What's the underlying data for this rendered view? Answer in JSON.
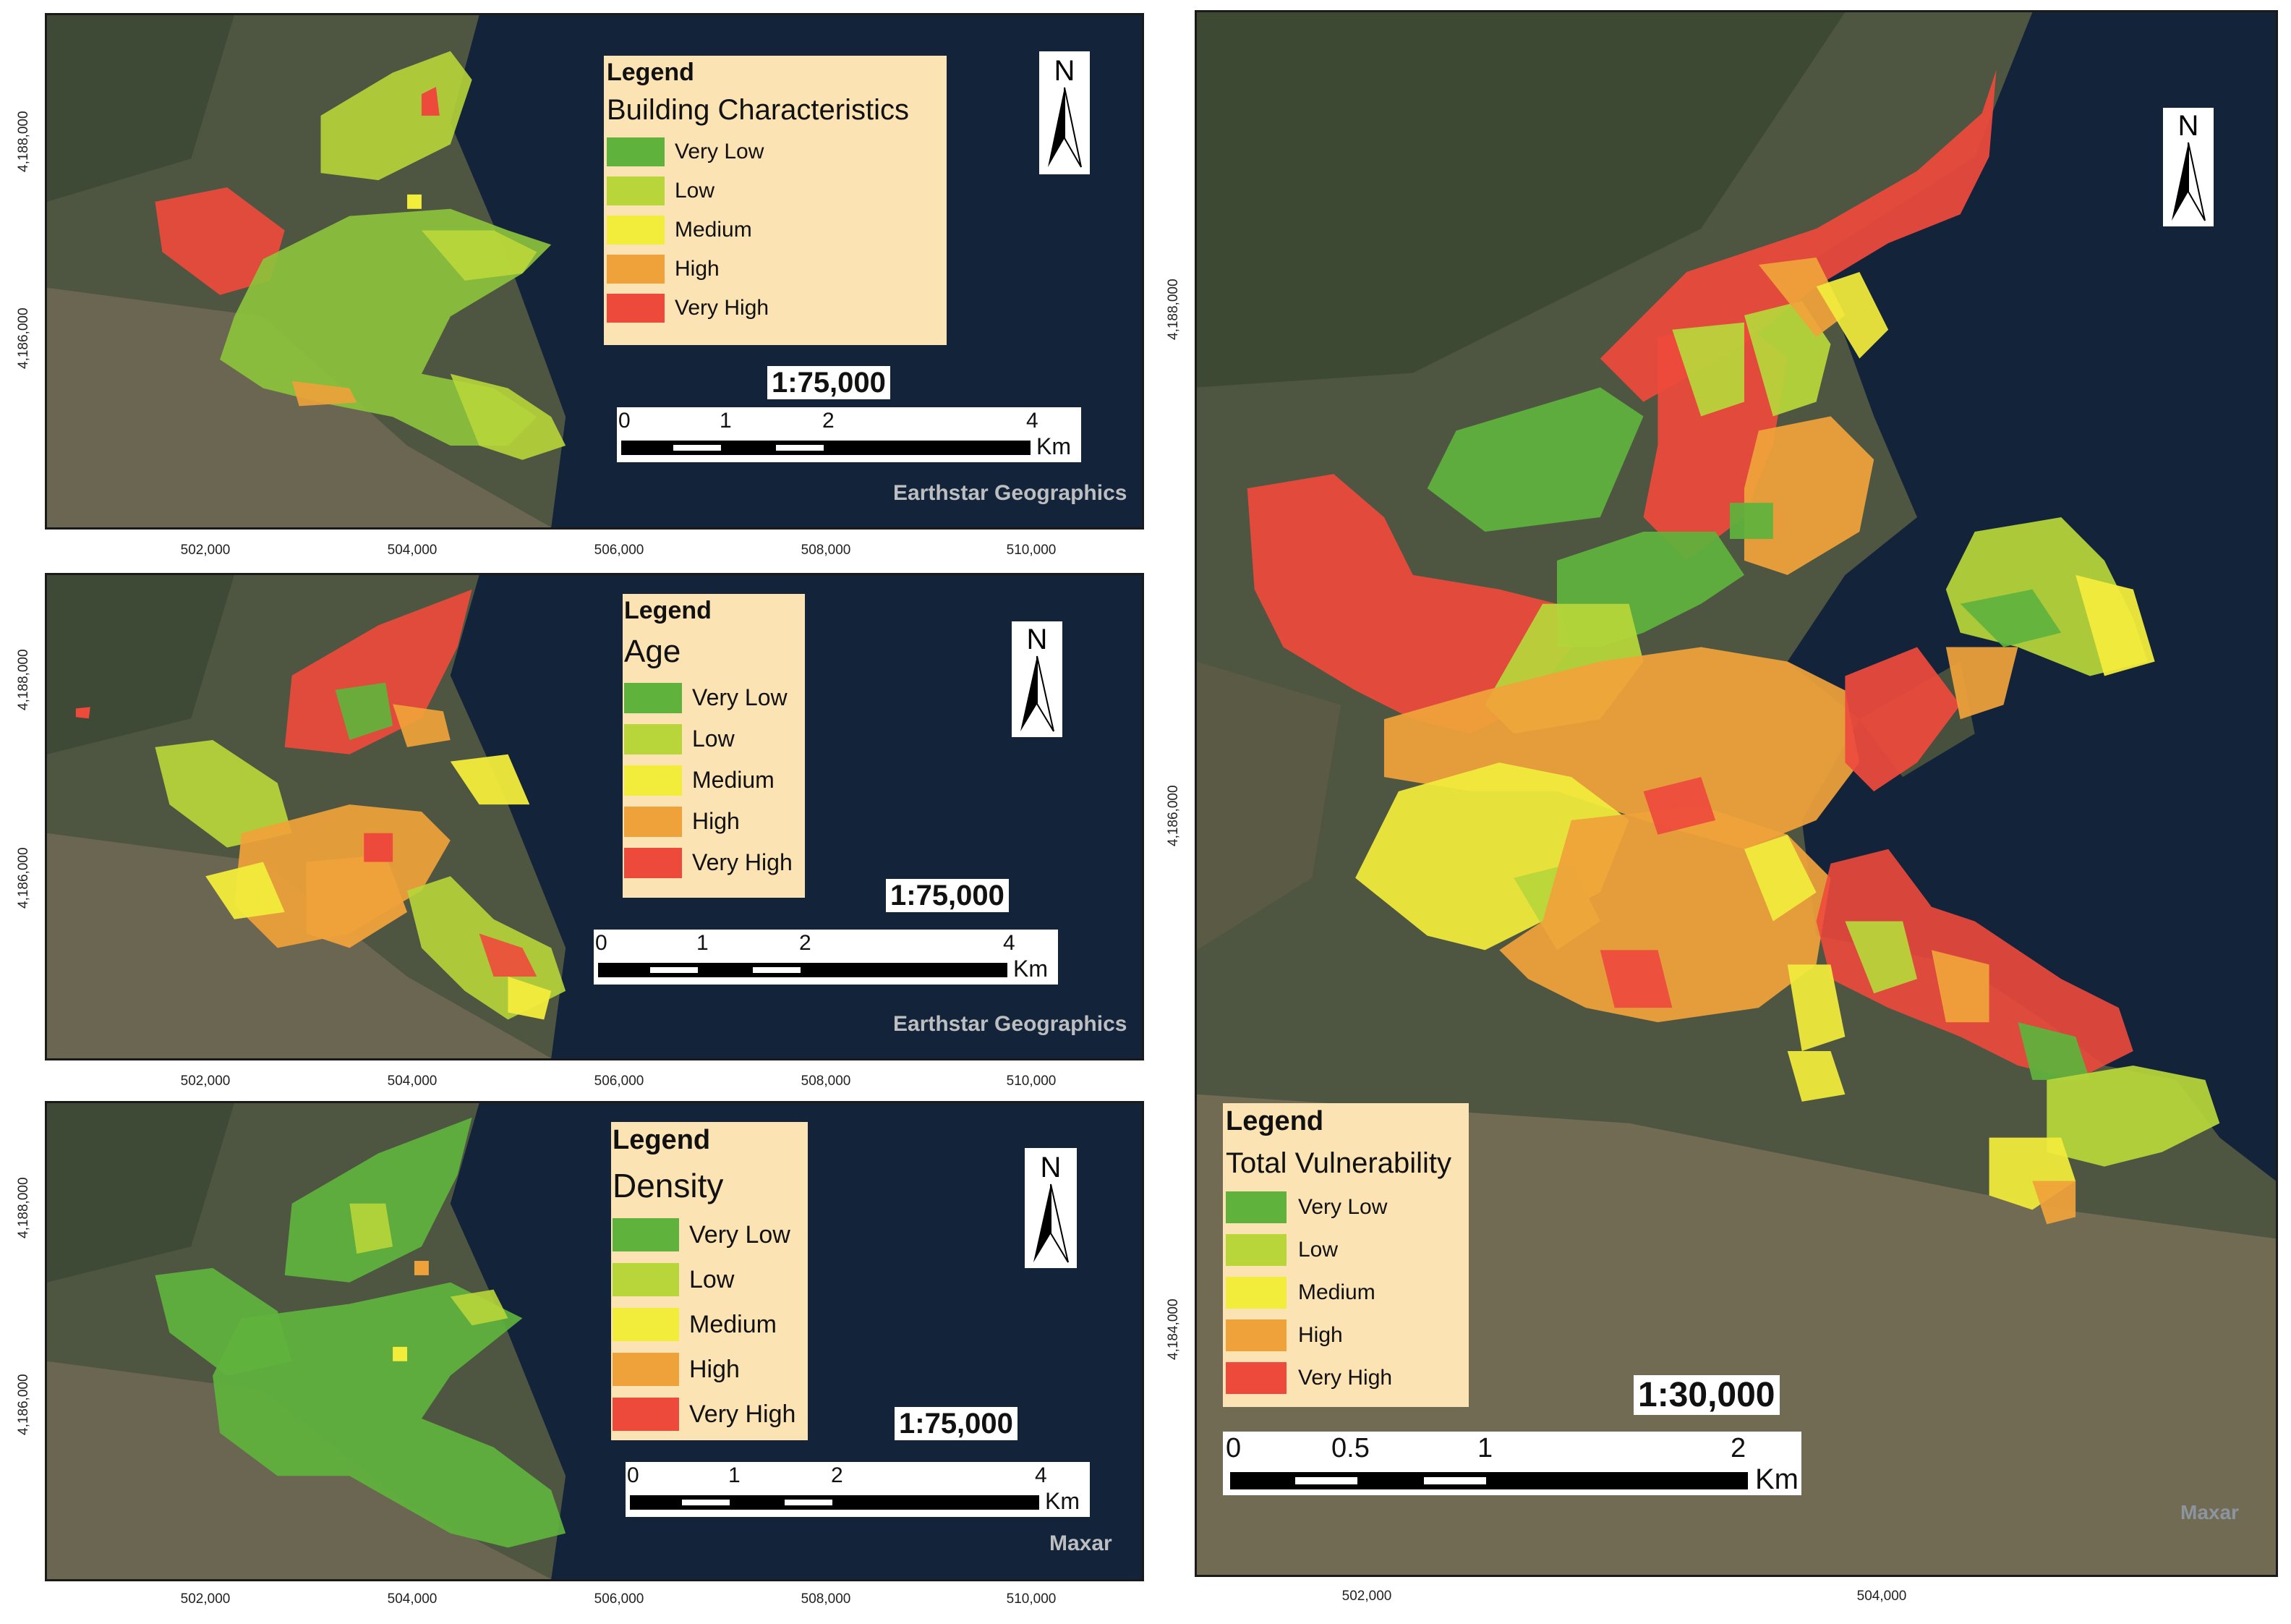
{
  "colors": {
    "very_low": "#5fb33d",
    "low": "#b8d63a",
    "medium": "#f2ec3b",
    "high": "#f0a23a",
    "very_high": "#ee4a3c",
    "sea": "#13233a",
    "land": "#5a5a45",
    "legend_bg": "#fbe3b3"
  },
  "legend_levels": [
    "Very Low",
    "Low",
    "Medium",
    "High",
    "Very High"
  ],
  "panels": {
    "building": {
      "legend_title": "Legend",
      "subtitle": "Building Characteristics",
      "scale": "1:75,000",
      "scalebar_ticks": [
        "0",
        "1",
        "2",
        "4"
      ],
      "unit": "Km",
      "credit": "Earthstar Geographics",
      "x_ticks": [
        "502,000",
        "504,000",
        "506,000",
        "508,000",
        "510,000"
      ],
      "y_ticks": [
        "4,188,000",
        "4,186,000"
      ]
    },
    "age": {
      "legend_title": "Legend",
      "subtitle": "Age",
      "scale": "1:75,000",
      "scalebar_ticks": [
        "0",
        "1",
        "2",
        "4"
      ],
      "unit": "Km",
      "credit": "Earthstar Geographics",
      "x_ticks": [
        "502,000",
        "504,000",
        "506,000",
        "508,000",
        "510,000"
      ],
      "y_ticks": [
        "4,188,000",
        "4,186,000"
      ]
    },
    "density": {
      "legend_title": "Legend",
      "subtitle": "Density",
      "scale": "1:75,000",
      "scalebar_ticks": [
        "0",
        "1",
        "2",
        "4"
      ],
      "unit": "Km",
      "credit": "Maxar",
      "x_ticks": [
        "502,000",
        "504,000",
        "506,000",
        "508,000",
        "510,000"
      ],
      "y_ticks": [
        "4,188,000",
        "4,186,000"
      ]
    },
    "total": {
      "legend_title": "Legend",
      "subtitle": "Total Vulnerability",
      "scale": "1:30,000",
      "scalebar_ticks": [
        "0",
        "0.5",
        "1",
        "2"
      ],
      "unit": "Km",
      "credit": "Maxar",
      "x_ticks": [
        "502,000",
        "504,000"
      ],
      "y_ticks": [
        "4,188,000",
        "4,186,000",
        "4,184,000"
      ]
    }
  },
  "north_label": "N"
}
